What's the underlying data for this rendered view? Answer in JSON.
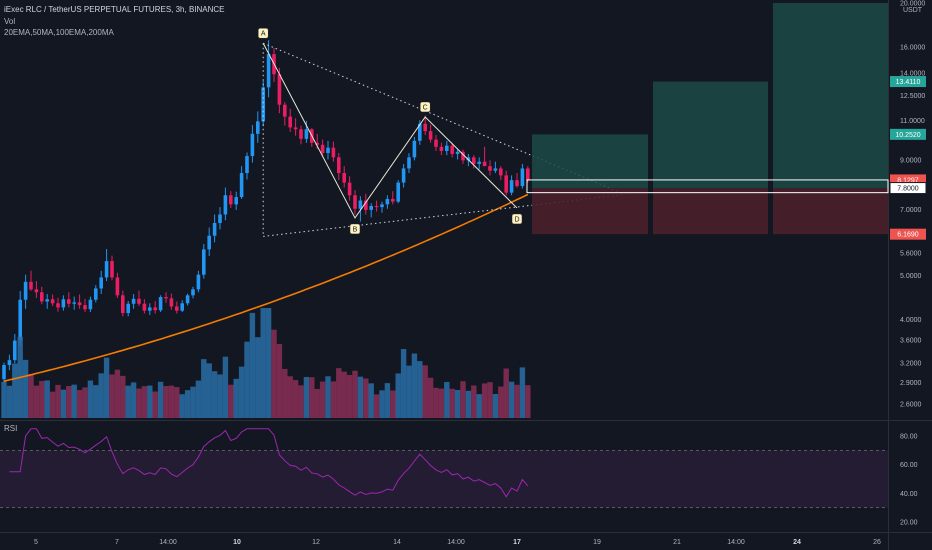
{
  "header": {
    "title": "iExec RLC / TetherUS PERPETUAL FUTURES, 3h, BINANCE",
    "vol_label": "Vol",
    "ma_label": "20EMA,50MA,100EMA,200MA"
  },
  "rsi_label": "RSI",
  "chart_data": {
    "type": "candlestick",
    "price_axis": {
      "scale": "log",
      "currency": "USDT",
      "ticks": [
        "20.0000",
        "16.0000",
        "14.0000",
        "12.5000",
        "11.0000",
        "9.0000",
        "7.0000",
        "5.6000",
        "5.0000",
        "4.0000",
        "3.6000",
        "3.2000",
        "2.9000",
        "2.6000"
      ],
      "tick_values": [
        20,
        16,
        14,
        12.5,
        11,
        9,
        7,
        5.6,
        5,
        4,
        3.6,
        3.2,
        2.9,
        2.6
      ],
      "price_labels": [
        {
          "text": "13.4110",
          "value": 13.411,
          "color": "#26a69a"
        },
        {
          "text": "10.2520",
          "value": 10.252,
          "color": "#26a69a"
        },
        {
          "text": "8.1297",
          "value": 8.1297,
          "color": "#ef5350"
        },
        {
          "text": "7.8000",
          "value": 7.8,
          "color": "#ffffff"
        },
        {
          "text": "6.1690",
          "value": 6.169,
          "color": "#ef5350"
        }
      ]
    },
    "time_axis": {
      "labels": [
        "5",
        "7",
        "14:00",
        "10",
        "12",
        "14",
        "14:00",
        "17",
        "19",
        "21",
        "14:00",
        "24",
        "26"
      ],
      "bold": [
        "10",
        "17",
        "24"
      ]
    },
    "candles": [
      [
        2.95,
        3.21,
        2.88,
        3.17
      ],
      [
        3.17,
        3.34,
        3.09,
        3.25
      ],
      [
        3.25,
        3.71,
        3.2,
        3.59
      ],
      [
        3.59,
        4.62,
        3.5,
        4.42
      ],
      [
        4.42,
        5.02,
        4.22,
        4.84
      ],
      [
        4.84,
        5.12,
        4.62,
        4.66
      ],
      [
        4.66,
        4.86,
        4.46,
        4.59
      ],
      [
        4.59,
        4.72,
        4.32,
        4.38
      ],
      [
        4.38,
        4.55,
        4.22,
        4.43
      ],
      [
        4.43,
        4.54,
        4.28,
        4.34
      ],
      [
        4.34,
        4.46,
        4.16,
        4.25
      ],
      [
        4.25,
        4.52,
        4.18,
        4.43
      ],
      [
        4.43,
        4.59,
        4.25,
        4.33
      ],
      [
        4.33,
        4.49,
        4.2,
        4.36
      ],
      [
        4.36,
        4.54,
        4.22,
        4.3
      ],
      [
        4.3,
        4.44,
        4.15,
        4.21
      ],
      [
        4.21,
        4.49,
        4.15,
        4.42
      ],
      [
        4.42,
        4.76,
        4.36,
        4.68
      ],
      [
        4.68,
        5.12,
        4.55,
        4.95
      ],
      [
        4.95,
        5.72,
        4.86,
        5.38
      ],
      [
        5.38,
        5.53,
        4.88,
        4.95
      ],
      [
        4.95,
        5.07,
        4.46,
        4.52
      ],
      [
        4.52,
        4.63,
        4.06,
        4.13
      ],
      [
        4.13,
        4.39,
        4.06,
        4.33
      ],
      [
        4.33,
        4.55,
        4.22,
        4.44
      ],
      [
        4.44,
        4.63,
        4.28,
        4.33
      ],
      [
        4.33,
        4.43,
        4.12,
        4.18
      ],
      [
        4.18,
        4.34,
        4.09,
        4.25
      ],
      [
        4.25,
        4.39,
        4.12,
        4.19
      ],
      [
        4.19,
        4.52,
        4.15,
        4.48
      ],
      [
        4.48,
        4.59,
        4.35,
        4.45
      ],
      [
        4.45,
        4.56,
        4.2,
        4.27
      ],
      [
        4.27,
        4.38,
        4.12,
        4.18
      ],
      [
        4.18,
        4.41,
        4.15,
        4.34
      ],
      [
        4.34,
        4.56,
        4.29,
        4.52
      ],
      [
        4.52,
        4.72,
        4.45,
        4.66
      ],
      [
        4.66,
        5.12,
        4.59,
        5.02
      ],
      [
        5.02,
        5.87,
        4.92,
        5.71
      ],
      [
        5.71,
        6.38,
        5.52,
        6.12
      ],
      [
        6.12,
        6.82,
        5.92,
        6.53
      ],
      [
        6.53,
        7.08,
        6.32,
        6.82
      ],
      [
        6.82,
        7.82,
        6.62,
        7.52
      ],
      [
        7.52,
        7.68,
        7.05,
        7.18
      ],
      [
        7.18,
        7.66,
        6.98,
        7.45
      ],
      [
        7.45,
        8.72,
        7.38,
        8.42
      ],
      [
        8.42,
        9.35,
        8.15,
        9.18
      ],
      [
        9.18,
        10.75,
        8.88,
        10.28
      ],
      [
        10.28,
        11.52,
        9.82,
        10.95
      ],
      [
        10.95,
        13.45,
        10.68,
        13.02
      ],
      [
        13.02,
        16.55,
        12.38,
        15.42
      ],
      [
        15.42,
        15.92,
        13.38,
        13.92
      ],
      [
        13.92,
        14.38,
        11.42,
        11.92
      ],
      [
        11.92,
        12.08,
        10.72,
        11.22
      ],
      [
        11.22,
        11.68,
        10.38,
        10.62
      ],
      [
        10.62,
        11.12,
        10.18,
        10.52
      ],
      [
        10.52,
        10.72,
        9.75,
        10.02
      ],
      [
        10.02,
        10.98,
        9.82,
        10.52
      ],
      [
        10.52,
        10.58,
        9.62,
        9.82
      ],
      [
        9.82,
        10.28,
        9.52,
        9.72
      ],
      [
        9.72,
        9.98,
        9.12,
        9.32
      ],
      [
        9.32,
        9.92,
        9.02,
        9.58
      ],
      [
        9.58,
        9.88,
        8.92,
        9.12
      ],
      [
        9.12,
        9.32,
        8.12,
        8.42
      ],
      [
        8.42,
        8.72,
        7.82,
        8.02
      ],
      [
        8.02,
        8.28,
        7.32,
        7.52
      ],
      [
        7.52,
        7.72,
        6.82,
        7.02
      ],
      [
        7.02,
        7.48,
        6.58,
        7.32
      ],
      [
        7.32,
        7.58,
        6.82,
        6.98
      ],
      [
        6.98,
        7.22,
        6.72,
        7.12
      ],
      [
        7.12,
        7.32,
        6.92,
        7.08
      ],
      [
        7.08,
        7.28,
        6.88,
        7.18
      ],
      [
        7.18,
        7.52,
        7.02,
        7.38
      ],
      [
        7.38,
        7.68,
        7.18,
        7.28
      ],
      [
        7.28,
        8.12,
        7.22,
        8.02
      ],
      [
        8.02,
        8.82,
        7.82,
        8.62
      ],
      [
        8.62,
        9.32,
        8.42,
        9.12
      ],
      [
        9.12,
        10.12,
        8.98,
        9.92
      ],
      [
        9.92,
        11.02,
        9.72,
        10.82
      ],
      [
        10.82,
        11.28,
        10.22,
        10.42
      ],
      [
        10.42,
        10.78,
        9.82,
        9.98
      ],
      [
        9.98,
        10.22,
        9.42,
        9.62
      ],
      [
        9.62,
        9.82,
        9.22,
        9.42
      ],
      [
        9.42,
        9.92,
        9.22,
        9.68
      ],
      [
        9.68,
        9.82,
        9.12,
        9.28
      ],
      [
        9.28,
        9.52,
        9.02,
        9.38
      ],
      [
        9.38,
        9.48,
        8.82,
        8.98
      ],
      [
        8.98,
        9.28,
        8.72,
        9.12
      ],
      [
        9.12,
        9.22,
        8.62,
        8.82
      ],
      [
        8.82,
        9.12,
        8.58,
        8.92
      ],
      [
        8.92,
        9.62,
        8.82,
        8.72
      ],
      [
        8.72,
        8.98,
        8.32,
        8.52
      ],
      [
        8.52,
        8.92,
        8.42,
        8.62
      ],
      [
        8.62,
        8.72,
        8.12,
        8.32
      ],
      [
        8.32,
        8.52,
        7.52,
        7.62
      ],
      [
        7.62,
        8.32,
        7.52,
        8.12
      ],
      [
        8.12,
        8.42,
        7.82,
        7.88
      ],
      [
        7.88,
        8.82,
        7.78,
        8.62
      ],
      [
        8.62,
        8.72,
        8.02,
        8.13
      ]
    ],
    "ema_line": {
      "color": "#f57c00",
      "first_value": 2.92,
      "last_value": 7.55
    },
    "volume": {
      "up_color": "#2a6fa8",
      "down_color": "#8b2f56"
    },
    "pattern": {
      "name": "ABCD",
      "points": [
        {
          "label": "A",
          "value": 16.3
        },
        {
          "label": "B",
          "value": 6.7
        },
        {
          "label": "C",
          "value": 11.2
        },
        {
          "label": "D",
          "value": 7.05
        }
      ]
    },
    "positions": {
      "entry": 7.8,
      "stop": 6.169,
      "targets": [
        10.252,
        13.411,
        20.0
      ]
    },
    "rsi": {
      "ticks": [
        "80.00",
        "60.00",
        "40.00",
        "20.00"
      ],
      "tick_values": [
        80,
        60,
        40,
        20
      ],
      "upper_band": 70,
      "lower_band": 30,
      "color": "#9c27b0"
    },
    "colors": {
      "up": "#26a69a",
      "down": "#ef5350",
      "background": "#131722",
      "grid": "#1e222d",
      "candle_up": "#2196f3",
      "candle_down": "#e91e63"
    }
  }
}
